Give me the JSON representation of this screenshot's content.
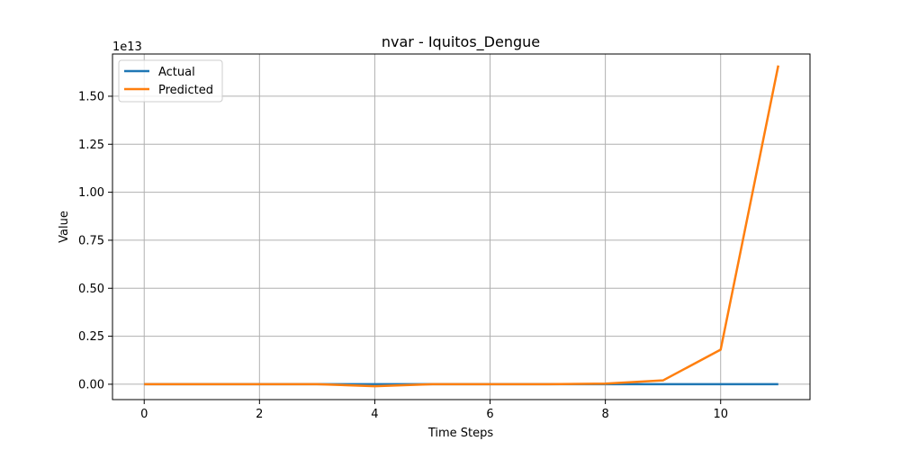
{
  "chart_data": {
    "type": "line",
    "title": "nvar - Iquitos_Dengue",
    "xlabel": "Time Steps",
    "ylabel": "Value",
    "offset_label": "1e13",
    "x": [
      0,
      1,
      2,
      3,
      4,
      5,
      6,
      7,
      8,
      9,
      10,
      11
    ],
    "xlim": [
      -0.55,
      11.55
    ],
    "ylim": [
      -0.08,
      1.72
    ],
    "y_scale_note": "values in units of 1e13",
    "x_ticks": [
      0,
      2,
      4,
      6,
      8,
      10
    ],
    "x_tick_labels": [
      "0",
      "2",
      "4",
      "6",
      "8",
      "10"
    ],
    "y_ticks": [
      0.0,
      0.25,
      0.5,
      0.75,
      1.0,
      1.25,
      1.5
    ],
    "y_tick_labels": [
      "0.00",
      "0.25",
      "0.50",
      "0.75",
      "1.00",
      "1.25",
      "1.50"
    ],
    "grid": true,
    "legend_position": "top-left",
    "series": [
      {
        "name": "Actual",
        "color": "#1f77b4",
        "values": [
          0.0,
          0.0,
          0.0,
          0.0,
          0.0,
          0.0,
          0.0,
          0.0,
          0.0,
          0.0,
          0.0,
          0.0
        ]
      },
      {
        "name": "Predicted",
        "color": "#ff7f0e",
        "values": [
          0.0,
          0.0,
          0.0,
          0.0,
          -0.01,
          0.0,
          0.0,
          0.0,
          0.003,
          0.02,
          0.18,
          1.66
        ]
      }
    ]
  }
}
